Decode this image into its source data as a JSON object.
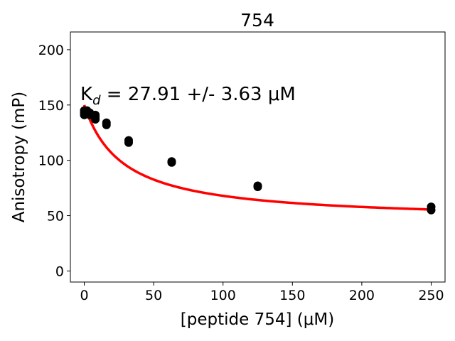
{
  "chart_data": {
    "type": "scatter",
    "title": "754",
    "xlabel": "[peptide 754] (μM)",
    "ylabel": "Anisotropy (mP)",
    "annotation": "K_d = 27.91 +/- 3.63 μM",
    "xlim": [
      -10,
      260
    ],
    "ylim": [
      -10,
      216
    ],
    "xticks": [
      0,
      50,
      100,
      150,
      200,
      250
    ],
    "yticks": [
      0,
      50,
      100,
      150,
      200
    ],
    "grid": false,
    "series": [
      {
        "kind": "points",
        "color": "#000000",
        "points": [
          [
            0,
            141
          ],
          [
            0,
            143
          ],
          [
            0,
            145
          ],
          [
            2,
            143
          ],
          [
            2,
            145
          ],
          [
            4,
            141
          ],
          [
            4,
            143
          ],
          [
            8,
            137
          ],
          [
            8,
            139
          ],
          [
            8,
            141
          ],
          [
            16,
            132
          ],
          [
            16,
            134
          ],
          [
            32,
            116
          ],
          [
            32,
            118
          ],
          [
            63,
            98
          ],
          [
            63,
            99
          ],
          [
            125,
            76
          ],
          [
            125,
            77
          ],
          [
            250,
            55
          ],
          [
            250,
            58
          ]
        ]
      },
      {
        "kind": "fit",
        "color": "#ff0000",
        "model": "one-site binding",
        "Kd": 27.91,
        "top": 150,
        "bottom": 45,
        "x_range": [
          0,
          250
        ]
      }
    ]
  }
}
